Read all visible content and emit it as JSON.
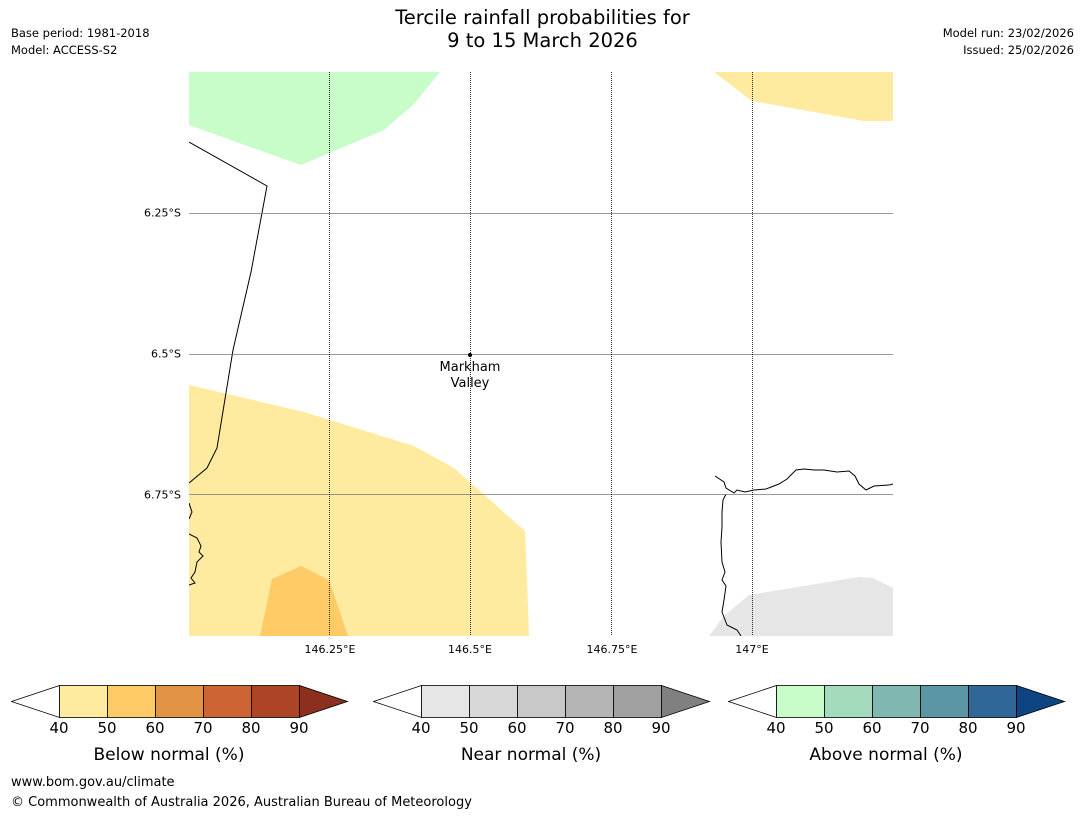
{
  "header": {
    "title_line1": "Tercile rainfall probabilities for",
    "title_line2": "9 to 15 March 2026",
    "base_period": "Base period: 1981-2018",
    "model": "Model: ACCESS-S2",
    "model_run": "Model run: 23/02/2026",
    "issued": "Issued: 25/02/2026"
  },
  "map": {
    "lat_labels": [
      "6.25°S",
      "6.5°S",
      "6.75°S"
    ],
    "lon_labels": [
      "146.25°E",
      "146.5°E",
      "146.75°E",
      "147°E"
    ],
    "place": {
      "line1": "Markham",
      "line2": "Valley"
    },
    "colors": {
      "below_40": "#feeba0",
      "below_50": "#fecb66",
      "above_40": "#c8fcc8",
      "near_40": "#e6e6e6"
    }
  },
  "colorbars": [
    {
      "label": "Below normal (%)",
      "ticks": [
        "40",
        "50",
        "60",
        "70",
        "80",
        "90"
      ],
      "colors": [
        "#feeba0",
        "#fecb66",
        "#e29444",
        "#cd6434",
        "#ae4426",
        "#8b2f1e"
      ]
    },
    {
      "label": "Near normal (%)",
      "ticks": [
        "40",
        "50",
        "60",
        "70",
        "80",
        "90"
      ],
      "colors": [
        "#e6e6e6",
        "#d8d8d8",
        "#c8c8c8",
        "#b5b5b5",
        "#a0a0a0",
        "#808080"
      ]
    },
    {
      "label": "Above normal (%)",
      "ticks": [
        "40",
        "50",
        "60",
        "70",
        "80",
        "90"
      ],
      "colors": [
        "#c8fcc8",
        "#a3dbbc",
        "#7fb8b0",
        "#5a96a3",
        "#2e6798",
        "#0f4482"
      ]
    }
  ],
  "footer": {
    "url": "www.bom.gov.au/climate",
    "copyright": "© Commonwealth of Australia 2026, Australian Bureau of Meteorology"
  }
}
